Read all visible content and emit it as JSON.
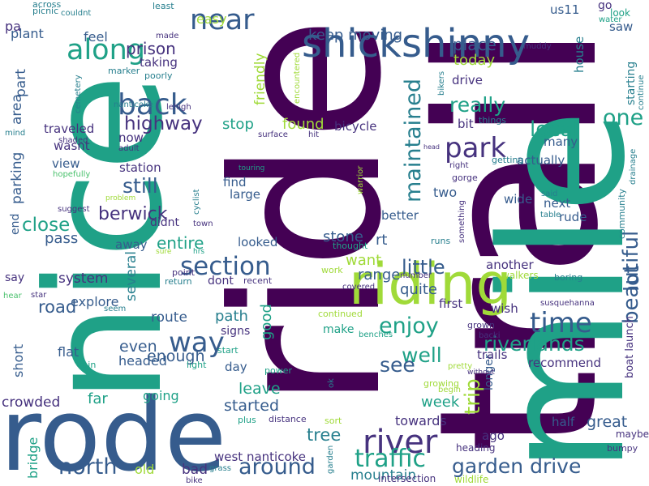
{
  "palette": {
    "purple": "#440154",
    "indigo": "#46327e",
    "blue": "#365c8d",
    "teal": "#277f8e",
    "green": "#1fa187",
    "light_green": "#4ac16d",
    "lime": "#a0da39",
    "yellow": "#fde725"
  },
  "words": [
    "ride",
    "trail",
    "nice",
    "mile",
    "rode",
    "riding",
    "shickshinny",
    "along",
    "near",
    "back",
    "park",
    "river",
    "time",
    "way",
    "section",
    "beautiful",
    "maintained",
    "traffic",
    "north",
    "around",
    "garden drive",
    "riverlands",
    "enjoy",
    "local",
    "highway",
    "really",
    "lot",
    "well",
    "see",
    "one",
    "trip",
    "close",
    "berwick",
    "still",
    "entire",
    "little",
    "prison",
    "keep moving",
    "place",
    "today",
    "great",
    "started",
    "leave",
    "tree",
    "road",
    "even",
    "enough",
    "path",
    "good",
    "week",
    "friendly",
    "found",
    "stop",
    "pass",
    "want",
    "range",
    "quite",
    "stone",
    "rt",
    "mountain",
    "towards",
    "west nanticoke",
    "bridge",
    "crowded",
    "bad",
    "old",
    "far",
    "going",
    "headed",
    "route",
    "several",
    "explore",
    "system",
    "flat",
    "short",
    "parking",
    "area",
    "part",
    "pa",
    "plant",
    "us11",
    "feel",
    "taking",
    "traveled",
    "wasnt",
    "view",
    "station",
    "find",
    "large",
    "two",
    "next",
    "rude",
    "wide",
    "better",
    "another",
    "first",
    "wish",
    "recommend",
    "half",
    "ago",
    "longer",
    "trails",
    "make",
    "day",
    "signs",
    "dont",
    "away",
    "didnt",
    "saw",
    "house",
    "starting",
    "actually",
    "many",
    "bicycle",
    "bit",
    "drive",
    "end",
    "say",
    "easy",
    "go",
    "look",
    "looked",
    "now",
    "boat launch",
    "community",
    "drainage",
    "continue",
    "muddy",
    "water",
    "made",
    "least",
    "picnic",
    "across",
    "couldnt",
    "marker",
    "poorly",
    "cemetery",
    "nanticoke",
    "lehigh",
    "mind",
    "shaded",
    "adult",
    "hopefully",
    "surface",
    "hit",
    "encountered",
    "bikers",
    "things",
    "head",
    "right",
    "gorge",
    "getting",
    "touring",
    "cyclist",
    "warrior",
    "problem",
    "suggest",
    "something",
    "said",
    "table",
    "thought",
    "runs",
    "sure",
    "hrs",
    "point",
    "return",
    "work",
    "recent",
    "covered",
    "number",
    "walkers",
    "boring",
    "star",
    "hear",
    "seem",
    "continued",
    "susquehanna",
    "grown",
    "backi",
    "benches",
    "light",
    "town",
    "rain",
    "start",
    "power",
    "pretty",
    "growing",
    "without",
    "begin",
    "ok",
    "sort",
    "plus",
    "distance",
    "grass",
    "bike",
    "garden",
    "intersection",
    "wildlife",
    "heading",
    "bumpy",
    "maybe"
  ]
}
